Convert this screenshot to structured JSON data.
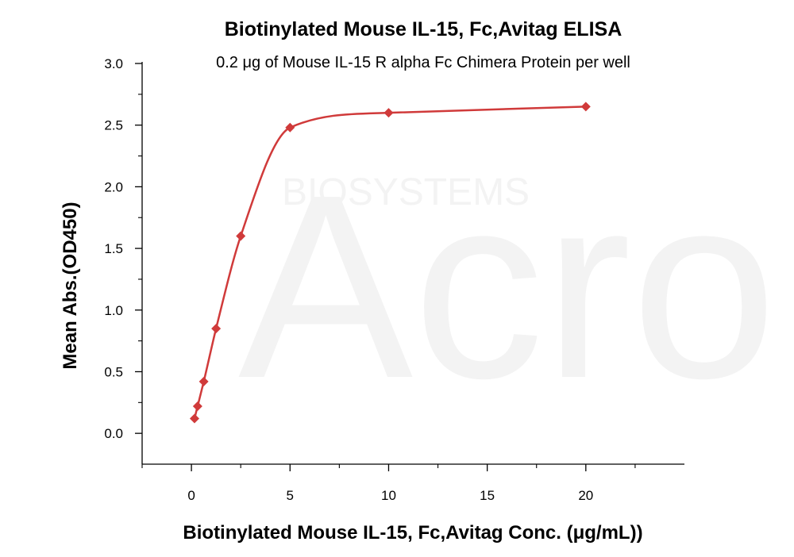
{
  "chart_data": {
    "type": "scatter",
    "title": "Biotinylated Mouse IL-15, Fc,Avitag ELISA",
    "subtitle": "0.2 μg of  Mouse IL-15 R alpha Fc Chimera Protein per well",
    "xlabel": "Biotinylated Mouse IL-15, Fc,Avitag Conc. (μg/mL))",
    "ylabel": "Mean Abs.(OD450)",
    "xlim": [
      -2.5,
      25
    ],
    "ylim": [
      -0.25,
      3.0
    ],
    "xticks": [
      0,
      5,
      10,
      15,
      20
    ],
    "xtick_labels": [
      "0",
      "5",
      "10",
      "15",
      "20"
    ],
    "yticks": [
      0.0,
      0.5,
      1.0,
      1.5,
      2.0,
      2.5,
      3.0
    ],
    "ytick_labels": [
      "0.0",
      "0.5",
      "1.0",
      "1.5",
      "2.0",
      "2.5",
      "3.0"
    ],
    "series": [
      {
        "color": "#d03a3a",
        "marker": "diamond",
        "x": [
          0.156,
          0.313,
          0.625,
          1.25,
          2.5,
          5,
          10,
          20
        ],
        "y": [
          0.12,
          0.22,
          0.42,
          0.85,
          1.6,
          2.48,
          2.6,
          2.65
        ],
        "fit_curve": true
      }
    ],
    "grid": false,
    "watermark": {
      "logo": "Acro",
      "text": "BIOSYSTEMS"
    }
  }
}
